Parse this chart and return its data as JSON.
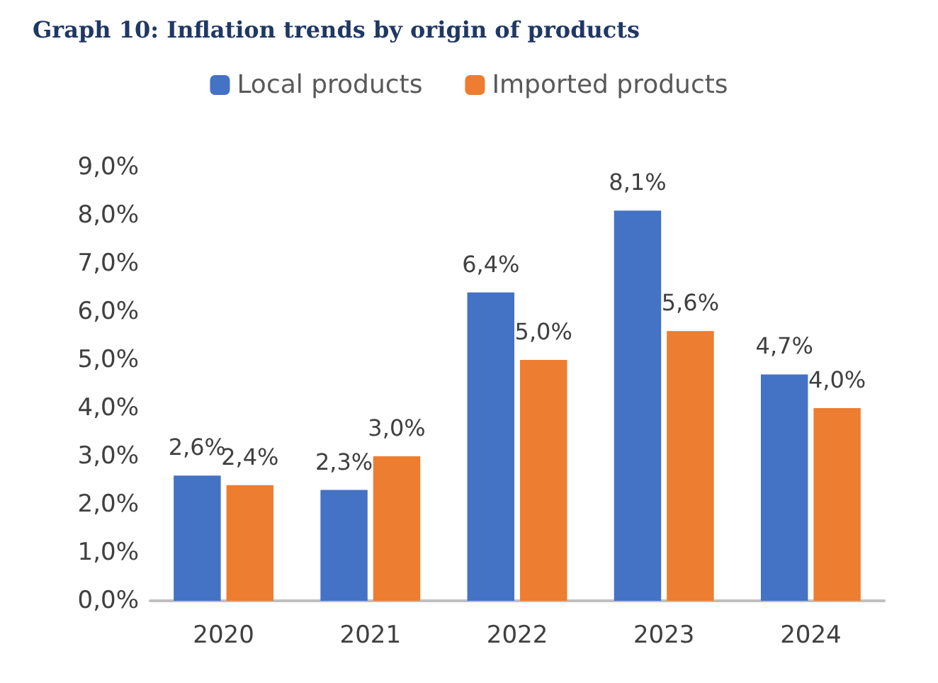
{
  "chart_data": {
    "type": "bar",
    "title": "Graph 10: Inflation trends by origin of products",
    "categories": [
      "2020",
      "2021",
      "2022",
      "2023",
      "2024"
    ],
    "series": [
      {
        "name": "Local products",
        "color": "#4472c4",
        "values": [
          2.6,
          2.3,
          6.4,
          8.1,
          4.7
        ],
        "value_labels": [
          "2,6%",
          "2,3%",
          "6,4%",
          "8,1%",
          "4,7%"
        ]
      },
      {
        "name": "Imported products",
        "color": "#ed7d31",
        "values": [
          2.4,
          3.0,
          5.0,
          5.6,
          4.0
        ],
        "value_labels": [
          "2,4%",
          "3,0%",
          "5,0%",
          "5,6%",
          "4,0%"
        ]
      }
    ],
    "ylim": [
      0,
      9
    ],
    "yticks": [
      {
        "value": 0,
        "label": "0,0%"
      },
      {
        "value": 1,
        "label": "1,0%"
      },
      {
        "value": 2,
        "label": "2,0%"
      },
      {
        "value": 3,
        "label": "3,0%"
      },
      {
        "value": 4,
        "label": "4,0%"
      },
      {
        "value": 5,
        "label": "5,0%"
      },
      {
        "value": 6,
        "label": "6,0%"
      },
      {
        "value": 7,
        "label": "7,0%"
      },
      {
        "value": 8,
        "label": "8,0%"
      },
      {
        "value": 9,
        "label": "9,0%"
      }
    ],
    "grid": false,
    "legend": "top"
  }
}
